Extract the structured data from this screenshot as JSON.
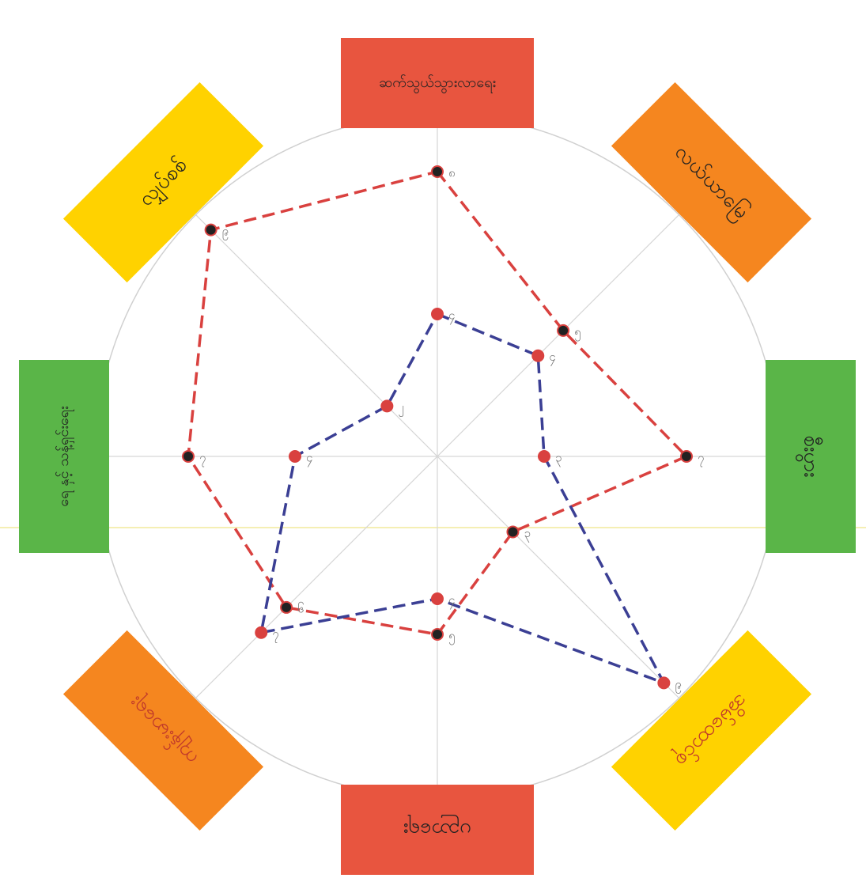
{
  "chart_data": {
    "type": "radar",
    "categories": [
      "ဆက်သွယ်သွားလာရေး",
      "လယ်ယာမြေ",
      "စီးပွား",
      "အိမ်ထောင်စု",
      "ပညာရေး",
      "ကျန်းမာရေး",
      "ရေ နှင့် သန့်ရှင်းရေး",
      "လျှပ်စစ်"
    ],
    "category_colors": [
      "#e8553f",
      "#f5861f",
      "#5ab548",
      "#ffd200",
      "#e8553f",
      "#f5861f",
      "#5ab548",
      "#ffd200"
    ],
    "rlim": [
      0,
      10
    ],
    "series": [
      {
        "color": "#d9413f",
        "values": [
          8,
          5,
          7,
          3,
          5,
          6,
          7,
          9
        ],
        "value_labels": [
          "၈",
          "၅",
          "၇",
          "၃",
          "၅",
          "၆",
          "၇",
          "၉"
        ]
      },
      {
        "color": "#3b3f94",
        "values": [
          4,
          4,
          3,
          9,
          4,
          7,
          4,
          2
        ],
        "value_labels": [
          "၄",
          "၄",
          "၃",
          "၉",
          "၄",
          "၇",
          "၄",
          "၂"
        ]
      }
    ]
  }
}
